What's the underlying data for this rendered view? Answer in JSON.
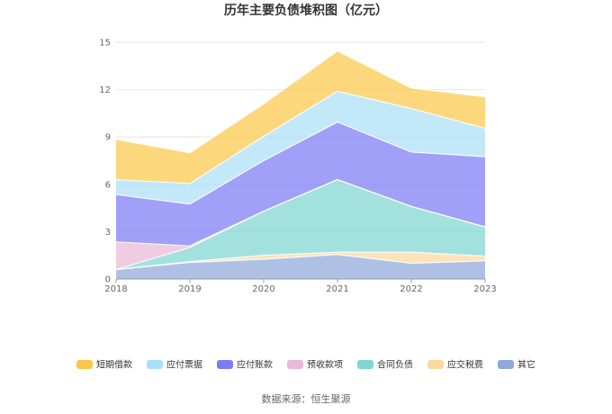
{
  "chart_data": {
    "type": "area",
    "stacked": true,
    "title": "历年主要负债堆积图（亿元）",
    "x": [
      "2018",
      "2019",
      "2020",
      "2021",
      "2022",
      "2023"
    ],
    "ylim": [
      0,
      15
    ],
    "yticks": [
      "0",
      "3",
      "6",
      "9",
      "12",
      "15"
    ],
    "grid": true,
    "legend_position": "bottom",
    "series": [
      {
        "name": "其它",
        "color": "#8fa9db",
        "values": [
          0.6,
          1.05,
          1.25,
          1.55,
          1.0,
          1.15
        ]
      },
      {
        "name": "应交税费",
        "color": "#fbd89e",
        "values": [
          0.0,
          0.05,
          0.25,
          0.15,
          0.7,
          0.3
        ]
      },
      {
        "name": "合同负债",
        "color": "#7fd6d2",
        "values": [
          0.0,
          0.9,
          2.8,
          4.6,
          2.9,
          1.85
        ]
      },
      {
        "name": "预收款项",
        "color": "#eab8d8",
        "values": [
          1.75,
          0.1,
          0.0,
          0.0,
          0.0,
          0.0
        ]
      },
      {
        "name": "应付账款",
        "color": "#7b7cf5",
        "values": [
          3.0,
          2.65,
          3.2,
          3.65,
          3.45,
          4.45
        ]
      },
      {
        "name": "应付票据",
        "color": "#acdff8",
        "values": [
          0.95,
          1.3,
          1.55,
          1.95,
          2.75,
          1.8
        ]
      },
      {
        "name": "短期借款",
        "color": "#fbc74a",
        "values": [
          2.55,
          1.95,
          2.05,
          2.55,
          1.3,
          2.0
        ]
      }
    ],
    "legend_order": [
      "短期借款",
      "应付票据",
      "应付账款",
      "预收款项",
      "合同负债",
      "应交税费",
      "其它"
    ]
  },
  "source": "数据来源：恒生聚源"
}
